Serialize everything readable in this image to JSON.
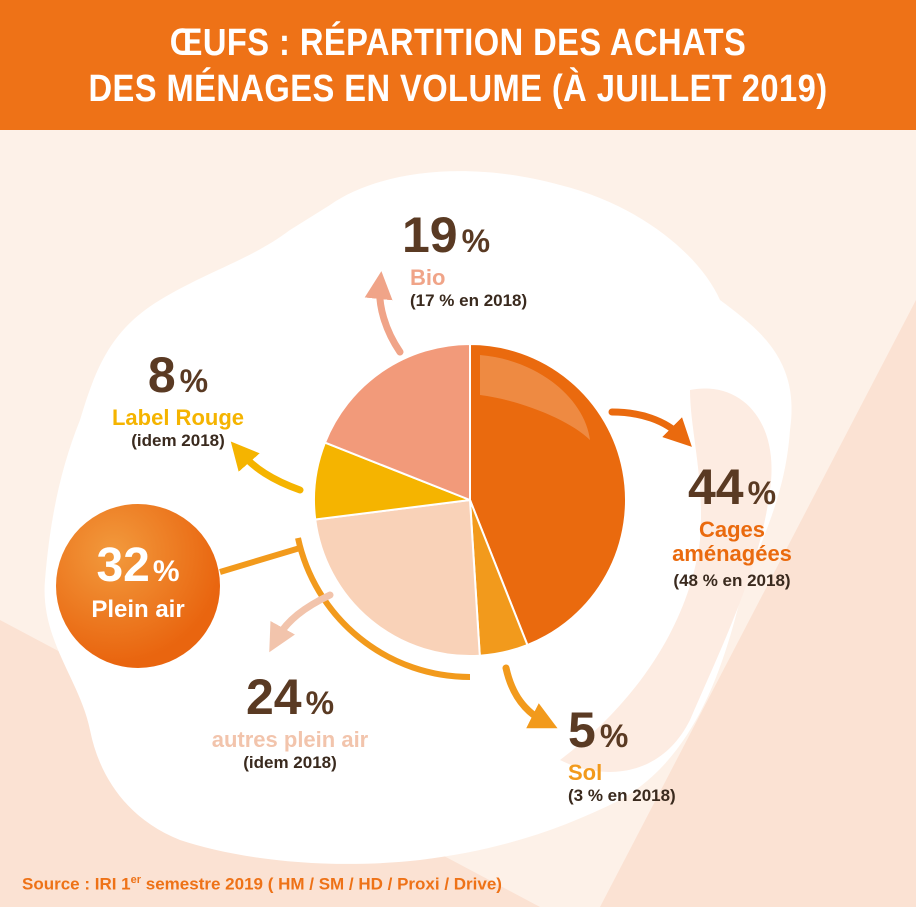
{
  "title": {
    "line1": "ŒUFS : RÉPARTITION DES ACHATS",
    "line2": "DES MÉNAGES EN VOLUME (À JUILLET 2019)"
  },
  "percent_symbol": "%",
  "colors": {
    "cages": "#ea6a0e",
    "sol": "#f29a1c",
    "autres": "#f9d2b8",
    "label_rouge": "#f5b400",
    "bio": "#f29a7a",
    "brand": "#ee7217",
    "text_dark": "#5a3a23"
  },
  "chart_data": {
    "type": "pie",
    "slices": [
      {
        "key": "cages",
        "label": "Cages aménagées",
        "value": 44,
        "note": "(48 % en 2018)"
      },
      {
        "key": "sol",
        "label": "Sol",
        "value": 5,
        "note": "(3 % en 2018)"
      },
      {
        "key": "autres",
        "label": "autres plein air",
        "value": 24,
        "note": "(idem 2018)"
      },
      {
        "key": "label_rouge",
        "label": "Label Rouge",
        "value": 8,
        "note": "(idem 2018)"
      },
      {
        "key": "bio",
        "label": "Bio",
        "value": 19,
        "note": "(17 % en 2018)"
      }
    ],
    "group": {
      "label": "Plein air",
      "value": 32
    }
  },
  "labels": {
    "cages": {
      "value": "44",
      "line1": "Cages",
      "line2": "aménagées",
      "note": "(48 % en 2018)"
    },
    "sol": {
      "value": "5",
      "name": "Sol",
      "note": "(3 % en 2018)"
    },
    "autres": {
      "value": "24",
      "name": "autres plein air",
      "note": "(idem 2018)"
    },
    "label_rouge": {
      "value": "8",
      "name": "Label Rouge",
      "note": "(idem 2018)"
    },
    "bio": {
      "value": "19",
      "name": "Bio",
      "note": "(17 % en 2018)"
    },
    "plein_air": {
      "value": "32",
      "name": "Plein air"
    }
  },
  "source": {
    "prefix": "Source : IRI 1",
    "sup": "er",
    "suffix": " semestre 2019 ( HM / SM / HD / Proxi / Drive)"
  }
}
